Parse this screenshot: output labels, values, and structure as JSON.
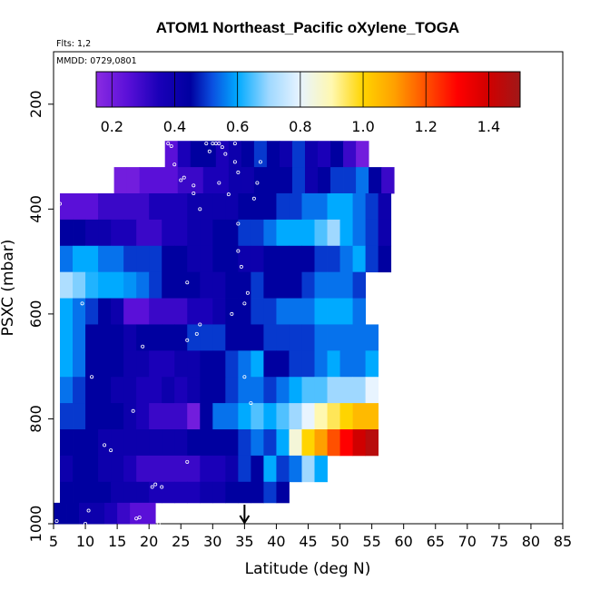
{
  "chart_data": {
    "type": "heatmap",
    "title": "ATOM1 Northeast_Pacific oXylene_TOGA",
    "flights_label": "Flts: 1,2",
    "dates_label": "MMDD: 0729,0801",
    "xlabel": "Latitude (deg N)",
    "ylabel": "PSXC (mbar)",
    "xlim": [
      5,
      85
    ],
    "ylim": [
      1000,
      100
    ],
    "xticks": [
      "5",
      "10",
      "15",
      "20",
      "25",
      "30",
      "35",
      "40",
      "45",
      "50",
      "55",
      "60",
      "65",
      "70",
      "75",
      "80",
      "85"
    ],
    "yticks": [
      "200",
      "400",
      "600",
      "800",
      "1000"
    ],
    "colorbar": {
      "min": 0.15,
      "max": 1.5,
      "ticks": [
        "0.2",
        "0.4",
        "0.6",
        "0.8",
        "1.0",
        "1.2",
        "1.4"
      ],
      "tick_values": [
        0.2,
        0.4,
        0.6,
        0.8,
        1.0,
        1.2,
        1.4
      ],
      "stops": [
        {
          "v": 0.15,
          "c": "#8a2be2"
        },
        {
          "v": 0.25,
          "c": "#5a10d8"
        },
        {
          "v": 0.35,
          "c": "#1a00b8"
        },
        {
          "v": 0.45,
          "c": "#0000a0"
        },
        {
          "v": 0.52,
          "c": "#0a50e0"
        },
        {
          "v": 0.6,
          "c": "#00aaff"
        },
        {
          "v": 0.7,
          "c": "#9fd8ff"
        },
        {
          "v": 0.8,
          "c": "#e8f4ff"
        },
        {
          "v": 0.9,
          "c": "#fff8b0"
        },
        {
          "v": 1.0,
          "c": "#ffd400"
        },
        {
          "v": 1.1,
          "c": "#ffa000"
        },
        {
          "v": 1.2,
          "c": "#ff5000"
        },
        {
          "v": 1.3,
          "c": "#ff0000"
        },
        {
          "v": 1.4,
          "c": "#d00000"
        },
        {
          "v": 1.5,
          "c": "#a01818"
        }
      ]
    },
    "arrow_latitude": 35,
    "bands": [
      {
        "p": [
          270,
          320
        ],
        "start": 22.5,
        "step": 2,
        "values": [
          0.25,
          0.35,
          0.45,
          0.45,
          0.35,
          0.4,
          0.45,
          0.5,
          0.45,
          0.4,
          0.5,
          0.4,
          0.35,
          0.45,
          0.3,
          0.2
        ]
      },
      {
        "p": [
          320,
          370
        ],
        "start": 14.5,
        "step": 2,
        "values": [
          0.2,
          0.2,
          0.25,
          0.25,
          0.25,
          0.3,
          0.3,
          0.35,
          0.35,
          0.4,
          0.4,
          0.45,
          0.45,
          0.45,
          0.5,
          0.4,
          0.45,
          0.5,
          0.5,
          0.55,
          0.45,
          0.3
        ]
      },
      {
        "p": [
          370,
          420
        ],
        "start": 6,
        "step": 2,
        "values": [
          0.25,
          0.25,
          0.25,
          0.3,
          0.3,
          0.3,
          0.3,
          0.35,
          0.35,
          0.35,
          0.4,
          0.4,
          0.4,
          0.4,
          0.45,
          0.45,
          0.45,
          0.5,
          0.5,
          0.55,
          0.55,
          0.6,
          0.6,
          0.55,
          0.5,
          0.4
        ]
      },
      {
        "p": [
          420,
          470
        ],
        "start": 6,
        "step": 2,
        "values": [
          0.45,
          0.45,
          0.4,
          0.4,
          0.35,
          0.35,
          0.3,
          0.3,
          0.35,
          0.35,
          0.4,
          0.4,
          0.45,
          0.45,
          0.5,
          0.5,
          0.55,
          0.6,
          0.6,
          0.6,
          0.65,
          0.7,
          0.6,
          0.55,
          0.5,
          0.4
        ]
      },
      {
        "p": [
          470,
          520
        ],
        "start": 6,
        "step": 2,
        "values": [
          0.55,
          0.6,
          0.6,
          0.55,
          0.55,
          0.5,
          0.5,
          0.5,
          0.45,
          0.45,
          0.4,
          0.4,
          0.45,
          0.45,
          0.4,
          0.4,
          0.45,
          0.45,
          0.45,
          0.45,
          0.5,
          0.5,
          0.55,
          0.6,
          0.5,
          0.45
        ]
      },
      {
        "p": [
          520,
          570
        ],
        "start": 6,
        "step": 2,
        "values": [
          0.72,
          0.68,
          0.62,
          0.6,
          0.6,
          0.58,
          0.55,
          0.5,
          0.45,
          0.45,
          0.45,
          0.4,
          0.4,
          0.45,
          0.45,
          0.5,
          0.45,
          0.45,
          0.45,
          0.5,
          0.55,
          0.55,
          0.55,
          0.5
        ]
      },
      {
        "p": [
          570,
          620
        ],
        "start": 6,
        "step": 2,
        "values": [
          0.6,
          0.55,
          0.5,
          0.45,
          0.4,
          0.25,
          0.25,
          0.3,
          0.3,
          0.3,
          0.35,
          0.35,
          0.4,
          0.45,
          0.45,
          0.5,
          0.5,
          0.55,
          0.55,
          0.55,
          0.6,
          0.6,
          0.6,
          0.55
        ]
      },
      {
        "p": [
          620,
          670
        ],
        "start": 6,
        "step": 2,
        "values": [
          0.6,
          0.55,
          0.45,
          0.45,
          0.45,
          0.4,
          0.45,
          0.45,
          0.45,
          0.45,
          0.5,
          0.5,
          0.5,
          0.45,
          0.45,
          0.45,
          0.5,
          0.5,
          0.5,
          0.5,
          0.55,
          0.55,
          0.55,
          0.55,
          0.55
        ]
      },
      {
        "p": [
          670,
          720
        ],
        "start": 6,
        "step": 2,
        "values": [
          0.6,
          0.55,
          0.45,
          0.45,
          0.45,
          0.4,
          0.4,
          0.35,
          0.35,
          0.4,
          0.4,
          0.45,
          0.45,
          0.5,
          0.55,
          0.6,
          0.45,
          0.45,
          0.5,
          0.5,
          0.55,
          0.6,
          0.55,
          0.55,
          0.6
        ]
      },
      {
        "p": [
          720,
          770
        ],
        "start": 6,
        "step": 2,
        "values": [
          0.55,
          0.5,
          0.45,
          0.45,
          0.4,
          0.4,
          0.35,
          0.35,
          0.4,
          0.35,
          0.4,
          0.45,
          0.45,
          0.5,
          0.55,
          0.55,
          0.5,
          0.55,
          0.6,
          0.65,
          0.65,
          0.7,
          0.7,
          0.7,
          0.8
        ]
      },
      {
        "p": [
          770,
          820
        ],
        "start": 6,
        "step": 2,
        "values": [
          0.5,
          0.5,
          0.45,
          0.45,
          0.45,
          0.4,
          0.35,
          0.3,
          0.3,
          0.3,
          0.2,
          0.45,
          0.55,
          0.55,
          0.6,
          0.65,
          0.6,
          0.65,
          0.7,
          0.8,
          0.9,
          0.95,
          1.0,
          1.05,
          1.05
        ]
      },
      {
        "p": [
          820,
          870
        ],
        "start": 6,
        "step": 2,
        "values": [
          0.45,
          0.45,
          0.45,
          0.4,
          0.4,
          0.4,
          0.4,
          0.4,
          0.4,
          0.4,
          0.45,
          0.45,
          0.45,
          0.45,
          0.5,
          0.55,
          0.5,
          0.6,
          0.85,
          1.0,
          1.1,
          1.2,
          1.3,
          1.4,
          1.45
        ]
      },
      {
        "p": [
          870,
          920
        ],
        "start": 6,
        "step": 2,
        "values": [
          0.4,
          0.45,
          0.45,
          0.4,
          0.4,
          0.35,
          0.3,
          0.3,
          0.3,
          0.3,
          0.3,
          0.35,
          0.35,
          0.4,
          0.5,
          0.45,
          0.6,
          0.5,
          0.55,
          0.7,
          0.6
        ]
      },
      {
        "p": [
          920,
          960
        ],
        "start": 6,
        "step": 2,
        "values": [
          0.45,
          0.45,
          0.45,
          0.45,
          0.4,
          0.4,
          0.4,
          0.35,
          0.35,
          0.35,
          0.35,
          0.4,
          0.4,
          0.45,
          0.45,
          0.45,
          0.5,
          0.45
        ]
      },
      {
        "p": [
          960,
          1000
        ],
        "start": 5,
        "step": 2,
        "values": [
          0.45,
          0.45,
          0.4,
          0.4,
          0.35,
          0.3,
          0.25,
          0.25
        ]
      }
    ],
    "points": [
      [
        5.5,
        995
      ],
      [
        6,
        390
      ],
      [
        9.5,
        580
      ],
      [
        10,
        1000
      ],
      [
        10.5,
        975
      ],
      [
        11,
        720
      ],
      [
        13,
        850
      ],
      [
        14,
        860
      ],
      [
        17.5,
        785
      ],
      [
        18,
        990
      ],
      [
        18.5,
        988
      ],
      [
        19,
        662
      ],
      [
        20.5,
        930
      ],
      [
        21,
        925
      ],
      [
        21.5,
        1000
      ],
      [
        22,
        930
      ],
      [
        23,
        275
      ],
      [
        23.5,
        280
      ],
      [
        24,
        315
      ],
      [
        25,
        345
      ],
      [
        25.5,
        340
      ],
      [
        26,
        540
      ],
      [
        26,
        650
      ],
      [
        26,
        882
      ],
      [
        26.5,
        970
      ],
      [
        27,
        355
      ],
      [
        27,
        370
      ],
      [
        27.5,
        638
      ],
      [
        28,
        400
      ],
      [
        28,
        620
      ],
      [
        29,
        275
      ],
      [
        29.5,
        290
      ],
      [
        30,
        275
      ],
      [
        30.5,
        275
      ],
      [
        31,
        275
      ],
      [
        31,
        350
      ],
      [
        31.5,
        282
      ],
      [
        32,
        295
      ],
      [
        32.5,
        372
      ],
      [
        33,
        600
      ],
      [
        33.5,
        275
      ],
      [
        33.5,
        310
      ],
      [
        34,
        330
      ],
      [
        34,
        428
      ],
      [
        34,
        480
      ],
      [
        34.5,
        510
      ],
      [
        35,
        720
      ],
      [
        35,
        580
      ],
      [
        35.5,
        560
      ],
      [
        36,
        770
      ],
      [
        36.5,
        380
      ],
      [
        37,
        350
      ],
      [
        37.5,
        310
      ]
    ]
  }
}
